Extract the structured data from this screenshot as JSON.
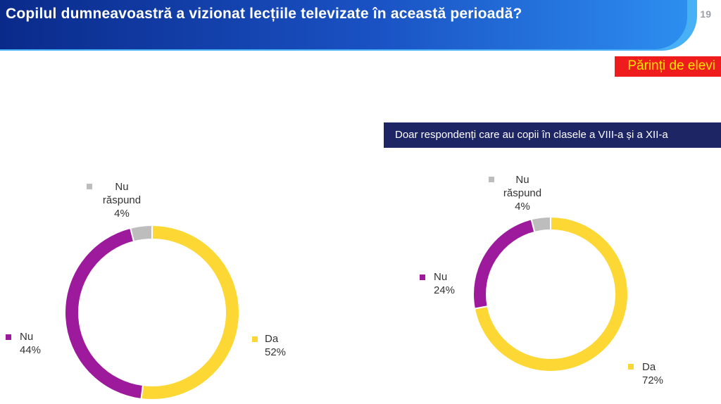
{
  "header": {
    "title": "Copilul dumneavoastră a vizionat lecțiile televizate în această perioadă?",
    "page_number": "19"
  },
  "badge": {
    "label": "Părinți de elevi"
  },
  "subset_banner": {
    "label": "Doar respondenți care au copii în clasele a VIII-a și a XII-a"
  },
  "chart_data": [
    {
      "type": "pie",
      "style": "donut",
      "title": "",
      "slices": [
        {
          "label": "Da",
          "value": 52,
          "display": "52%",
          "color": "#fdd835"
        },
        {
          "label": "Nu",
          "value": 44,
          "display": "44%",
          "color": "#9c1a9b"
        },
        {
          "label_lines": [
            "Nu",
            "răspund"
          ],
          "label": "Nu răspund",
          "value": 4,
          "display": "4%",
          "color": "#bdbdbd"
        }
      ]
    },
    {
      "type": "pie",
      "style": "donut",
      "title": "",
      "slices": [
        {
          "label": "Da",
          "value": 72,
          "display": "72%",
          "color": "#fdd835"
        },
        {
          "label": "Nu",
          "value": 24,
          "display": "24%",
          "color": "#9c1a9b"
        },
        {
          "label_lines": [
            "Nu",
            "răspund"
          ],
          "label": "Nu răspund",
          "value": 4,
          "display": "4%",
          "color": "#bdbdbd"
        }
      ]
    }
  ]
}
